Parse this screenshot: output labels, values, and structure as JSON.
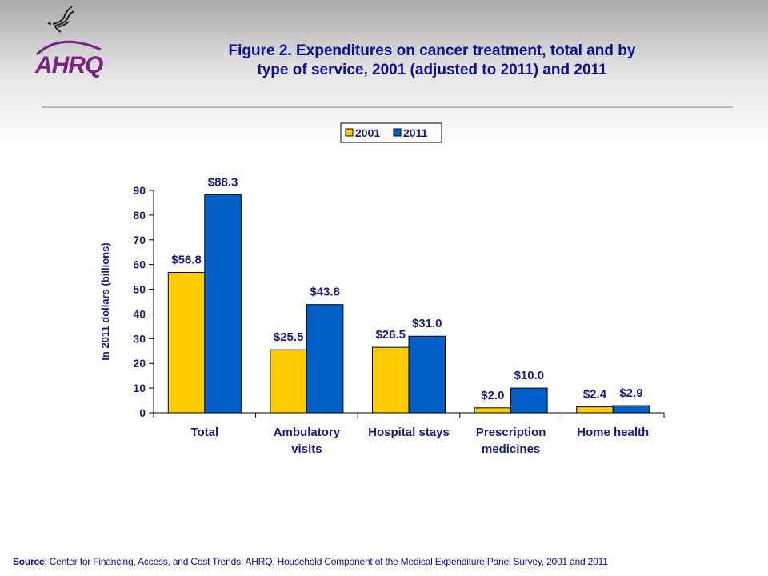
{
  "logo": {
    "text": "AHRQ",
    "emblem": "hhs-eagle-icon",
    "color": "#7b2382"
  },
  "header": {
    "title_line1": "Figure 2. Expenditures on cancer treatment, total and by",
    "title_line2": "type of service, 2001 (adjusted to 2011) and 2011"
  },
  "chart_data": {
    "type": "bar",
    "title": "Figure 2. Expenditures on cancer treatment, total and by type of service, 2001 (adjusted to 2011) and 2011",
    "categories": [
      [
        "Total"
      ],
      [
        "Ambulatory",
        "visits"
      ],
      [
        "Hospital stays"
      ],
      [
        "Prescription",
        "medicines"
      ],
      [
        "Home health"
      ]
    ],
    "series": [
      {
        "name": "2001",
        "color": "#ffcc00",
        "values": [
          56.8,
          25.5,
          26.5,
          2.0,
          2.4
        ],
        "labels": [
          "$56.8",
          "$25.5",
          "$26.5",
          "$2.0",
          "$2.4"
        ]
      },
      {
        "name": "2011",
        "color": "#0060c8",
        "values": [
          88.3,
          43.8,
          31.0,
          10.0,
          2.9
        ],
        "labels": [
          "$88.3",
          "$43.8",
          "$31.0",
          "$10.0",
          "$2.9"
        ]
      }
    ],
    "ylabel": "In 2011 dollars (billions)",
    "xlabel": "",
    "ylim": [
      0,
      90
    ],
    "yticks": [
      0,
      10,
      20,
      30,
      40,
      50,
      60,
      70,
      80,
      90
    ],
    "grid": false,
    "legend": "top-center"
  },
  "footer": {
    "source_label": "Source",
    "source_text": ": Center for Financing, Access, and Cost Trends, AHRQ,  Household Component of the Medical Expenditure Panel Survey,  2001 and  2011"
  }
}
